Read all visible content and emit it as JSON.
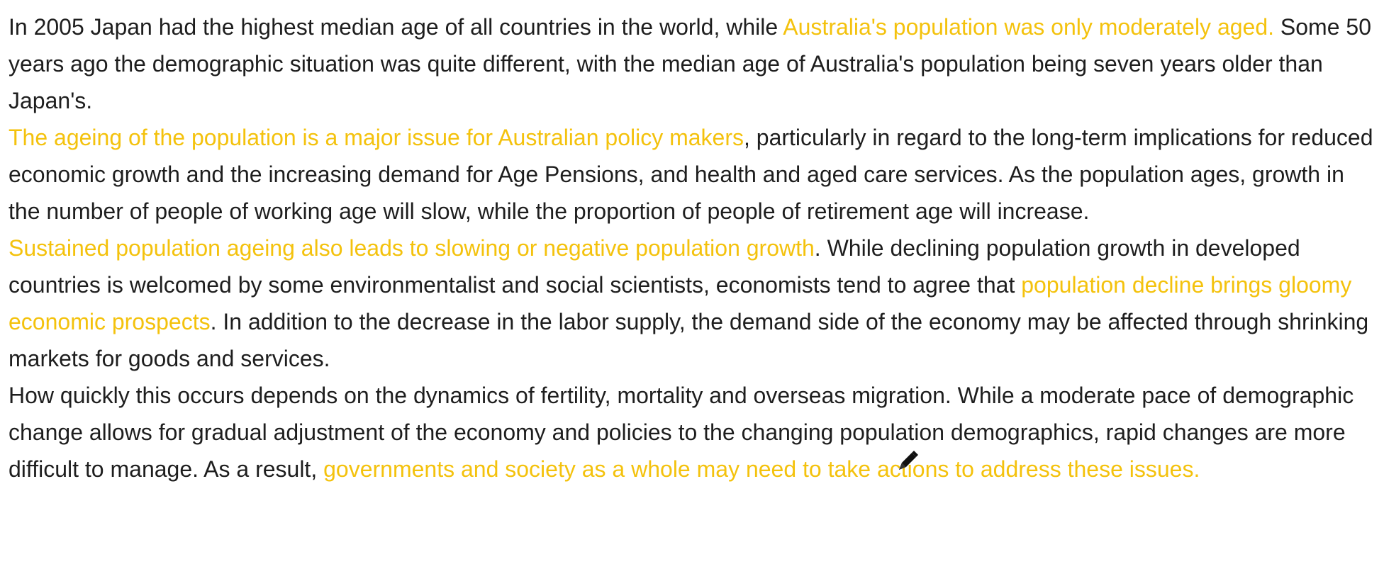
{
  "paragraphs": [
    {
      "segments": [
        {
          "text": "In 2005 Japan had the highest median age of all countries in the world, while ",
          "hl": false
        },
        {
          "text": "Australia's population was only moderately aged.",
          "hl": true
        },
        {
          "text": " Some 50 years ago the demographic situation was quite different, with the median age of Australia's population being seven years older than Japan's.",
          "hl": false
        }
      ]
    },
    {
      "segments": [
        {
          "text": "The ageing of the population is a major issue for Australian policy makers",
          "hl": true
        },
        {
          "text": ", particularly in regard to the long-term implications for reduced economic growth and the increasing demand for Age Pensions, and health and aged care services. As the population ages, growth in the number of people of working age will slow, while the proportion of people of retirement age will increase.",
          "hl": false
        }
      ]
    },
    {
      "segments": [
        {
          "text": "Sustained population ageing also leads to slowing or negative population growth",
          "hl": true
        },
        {
          "text": ". While declining population growth in developed countries is welcomed by some environmentalist and social scientists, economists tend to agree that ",
          "hl": false
        },
        {
          "text": "population decline brings gloomy economic prospects",
          "hl": true
        },
        {
          "text": ". In addition to the decrease in the labor supply, the demand side of the economy may be affected through shrinking markets for goods and services.",
          "hl": false
        }
      ]
    },
    {
      "segments": [
        {
          "text": "How quickly this occurs depends on the dynamics of fertility, mortality and overseas migration. While a moderate pace of demographic change allows for gradual adjustment of the economy and policies to the changing population demographics, rapid changes are more difficult to manage. As a result, ",
          "hl": false
        },
        {
          "text": "governments and society as a whole may need to take actions to address these issues.",
          "hl": true
        }
      ]
    }
  ],
  "colors": {
    "text": "#1e1e1e",
    "highlight": "#f4c20d"
  },
  "icons": {
    "cursor": "pen-cursor-icon"
  }
}
